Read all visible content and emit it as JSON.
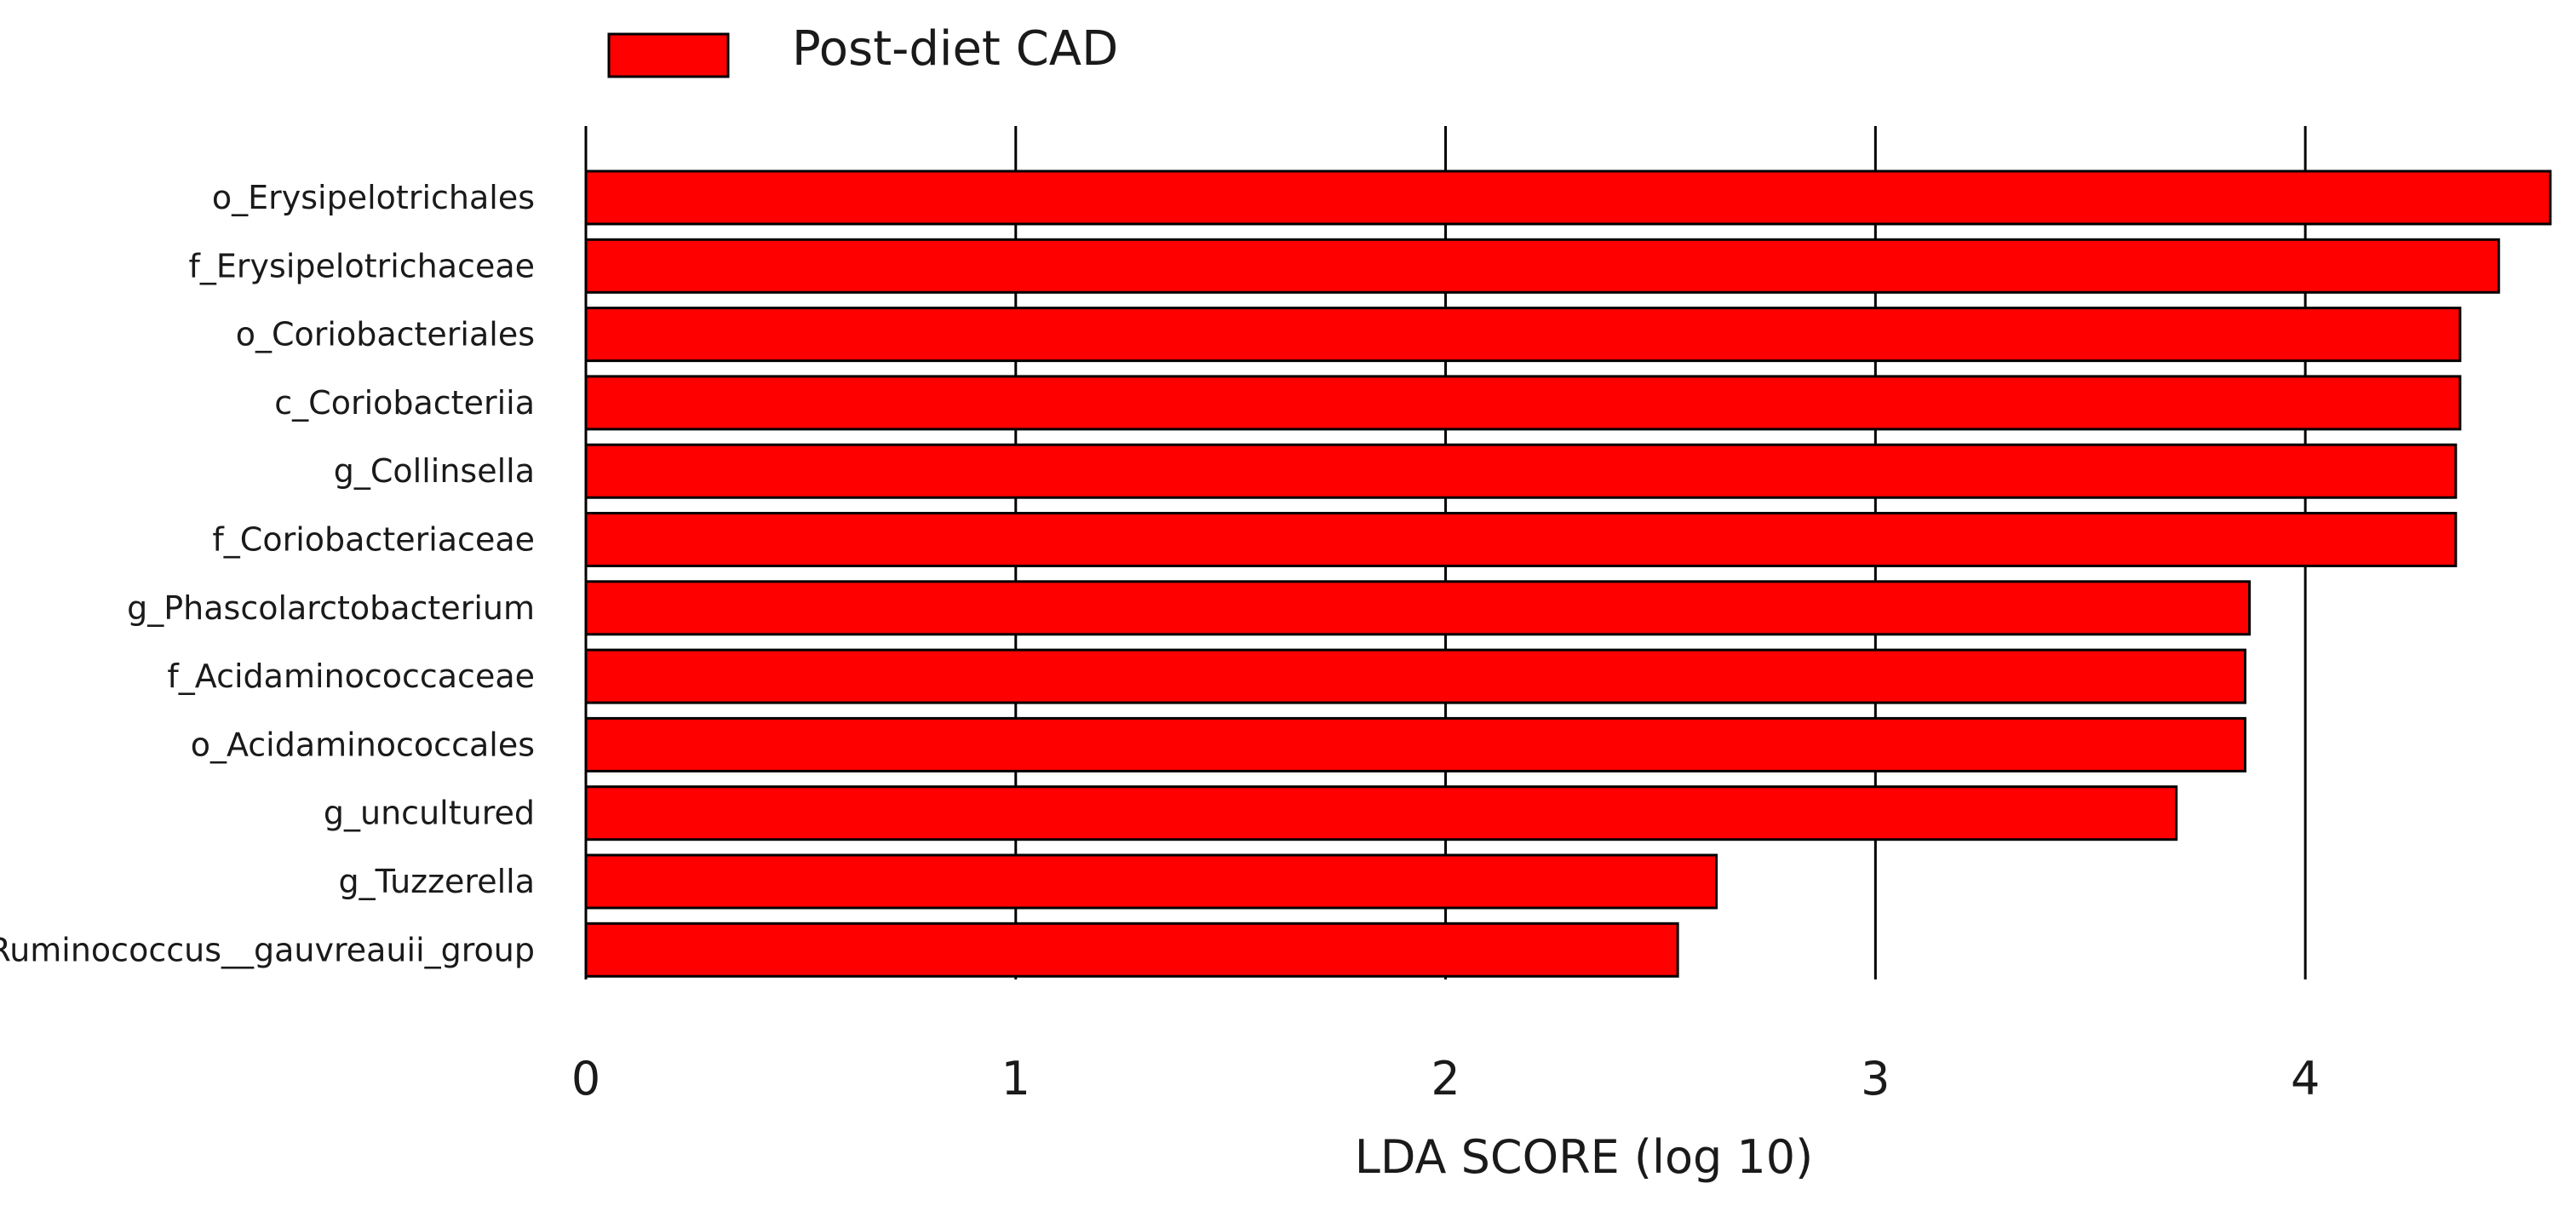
{
  "chart_data": {
    "type": "bar",
    "orientation": "horizontal",
    "title": "",
    "xlabel": "LDA SCORE (log 10)",
    "ylabel": "",
    "xlim": [
      0,
      4.6
    ],
    "xticks": [
      "0",
      "1",
      "2",
      "3",
      "4"
    ],
    "grid": "vertical",
    "legend": {
      "position": "top",
      "entries": [
        "Post-diet CAD"
      ]
    },
    "bar_color": "#ff0000",
    "categories": [
      "o_Erysipelotrichales",
      "f_Erysipelotrichaceae",
      "o_Coriobacteriales",
      "c_Coriobacteriia",
      "g_Collinsella",
      "f_Coriobacteriaceae",
      "g_Phascolarctobacterium",
      "f_Acidaminococcaceae",
      "o_Acidaminococcales",
      "g_uncultured",
      "g_Tuzzerella",
      "g_Ruminococcus__gauvreauii_group"
    ],
    "series": [
      {
        "name": "Post-diet CAD",
        "values": [
          4.57,
          4.45,
          4.36,
          4.36,
          4.35,
          4.35,
          3.87,
          3.86,
          3.86,
          3.7,
          2.63,
          2.54
        ]
      }
    ]
  }
}
